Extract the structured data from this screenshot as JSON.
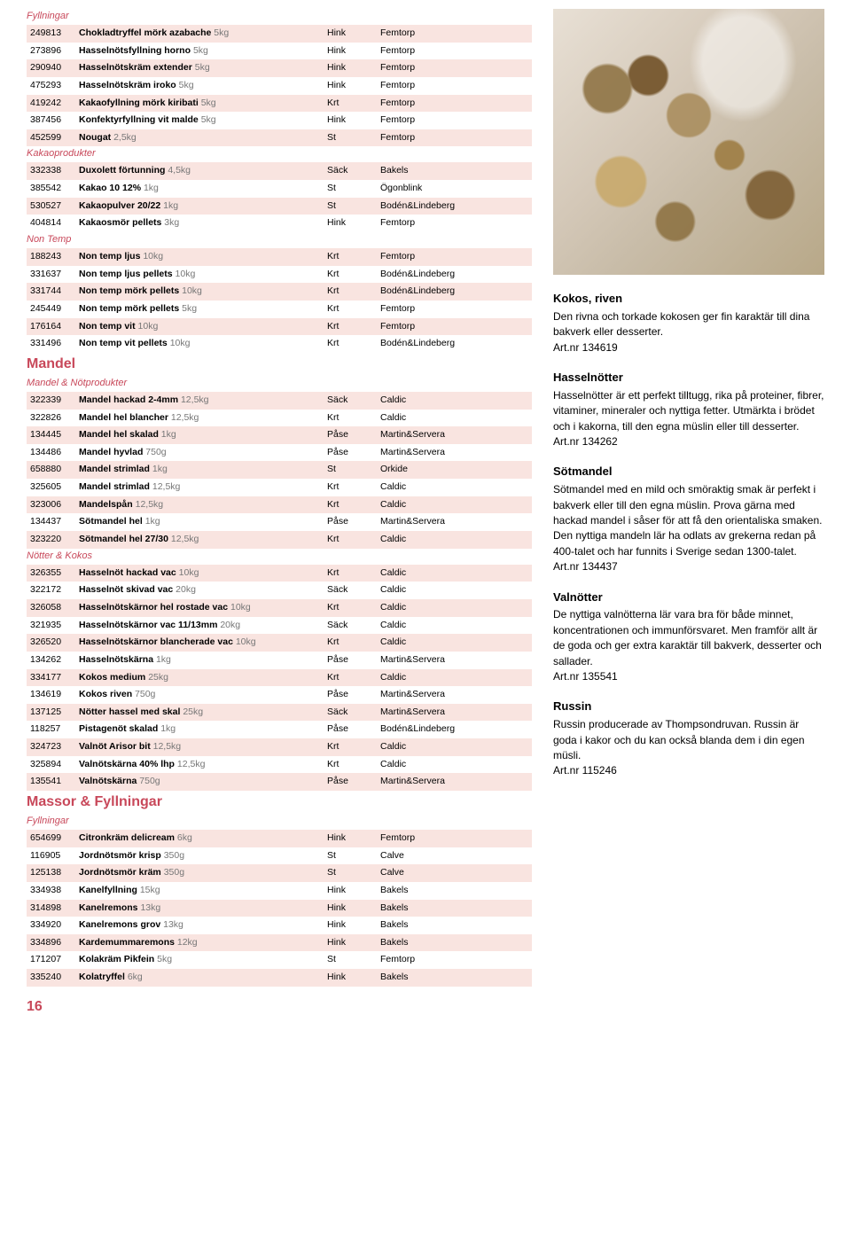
{
  "page_number": "16",
  "colors": {
    "accent": "#c8485a",
    "row_odd": "#f9e4e0",
    "row_even": "#ffffff",
    "light_text": "#777777"
  },
  "left": {
    "groups": [
      {
        "type": "subheader",
        "label": "Fyllningar"
      },
      {
        "type": "rows",
        "rows": [
          [
            "249813",
            "Chokladtryffel mörk azabache",
            "5kg",
            "Hink",
            "Femtorp"
          ],
          [
            "273896",
            "Hasselnötsfyllning horno",
            "5kg",
            "Hink",
            "Femtorp"
          ],
          [
            "290940",
            "Hasselnötskräm extender",
            "5kg",
            "Hink",
            "Femtorp"
          ],
          [
            "475293",
            "Hasselnötskräm iroko",
            "5kg",
            "Hink",
            "Femtorp"
          ],
          [
            "419242",
            "Kakaofyllning mörk kiribati",
            "5kg",
            "Krt",
            "Femtorp"
          ],
          [
            "387456",
            "Konfektyrfyllning vit malde",
            "5kg",
            "Hink",
            "Femtorp"
          ],
          [
            "452599",
            "Nougat",
            "2,5kg",
            "St",
            "Femtorp"
          ]
        ]
      },
      {
        "type": "subheader",
        "label": "Kakaoprodukter"
      },
      {
        "type": "rows",
        "rows": [
          [
            "332338",
            "Duxolett förtunning",
            "4,5kg",
            "Säck",
            "Bakels"
          ],
          [
            "385542",
            "Kakao 10 12%",
            "1kg",
            "St",
            "Ögonblink"
          ],
          [
            "530527",
            "Kakaopulver 20/22",
            "1kg",
            "St",
            "Bodén&Lindeberg"
          ],
          [
            "404814",
            "Kakaosmör pellets",
            "3kg",
            "Hink",
            "Femtorp"
          ]
        ]
      },
      {
        "type": "subheader",
        "label": "Non Temp"
      },
      {
        "type": "rows",
        "rows": [
          [
            "188243",
            "Non temp ljus",
            "10kg",
            "Krt",
            "Femtorp"
          ],
          [
            "331637",
            "Non temp ljus pellets",
            "10kg",
            "Krt",
            "Bodén&Lindeberg"
          ],
          [
            "331744",
            "Non temp mörk pellets",
            "10kg",
            "Krt",
            "Bodén&Lindeberg"
          ],
          [
            "245449",
            "Non temp mörk pellets",
            "5kg",
            "Krt",
            "Femtorp"
          ],
          [
            "176164",
            "Non temp vit",
            "10kg",
            "Krt",
            "Femtorp"
          ],
          [
            "331496",
            "Non temp vit pellets",
            "10kg",
            "Krt",
            "Bodén&Lindeberg"
          ]
        ]
      },
      {
        "type": "section",
        "label": "Mandel"
      },
      {
        "type": "subheader",
        "label": "Mandel & Nötprodukter"
      },
      {
        "type": "rows",
        "rows": [
          [
            "322339",
            "Mandel hackad 2-4mm",
            "12,5kg",
            "Säck",
            "Caldic"
          ],
          [
            "322826",
            "Mandel hel blancher",
            "12,5kg",
            "Krt",
            "Caldic"
          ],
          [
            "134445",
            "Mandel hel skalad",
            "1kg",
            "Påse",
            "Martin&Servera"
          ],
          [
            "134486",
            "Mandel hyvlad",
            "750g",
            "Påse",
            "Martin&Servera"
          ],
          [
            "658880",
            "Mandel strimlad",
            "1kg",
            "St",
            "Orkide"
          ],
          [
            "325605",
            "Mandel strimlad",
            "12,5kg",
            "Krt",
            "Caldic"
          ],
          [
            "323006",
            "Mandelspån",
            "12,5kg",
            "Krt",
            "Caldic"
          ],
          [
            "134437",
            "Sötmandel hel",
            "1kg",
            "Påse",
            "Martin&Servera"
          ],
          [
            "323220",
            "Sötmandel hel 27/30",
            "12,5kg",
            "Krt",
            "Caldic"
          ]
        ]
      },
      {
        "type": "subheader",
        "label": "Nötter & Kokos"
      },
      {
        "type": "rows",
        "rows": [
          [
            "326355",
            "Hasselnöt hackad vac",
            "10kg",
            "Krt",
            "Caldic"
          ],
          [
            "322172",
            "Hasselnöt skivad vac",
            "20kg",
            "Säck",
            "Caldic"
          ],
          [
            "326058",
            "Hasselnötskärnor hel rostade vac",
            "10kg",
            "Krt",
            "Caldic"
          ],
          [
            "321935",
            "Hasselnötskärnor vac 11/13mm",
            "20kg",
            "Säck",
            "Caldic"
          ],
          [
            "326520",
            "Hasselnötskärnor blancherade vac",
            "10kg",
            "Krt",
            "Caldic"
          ],
          [
            "134262",
            "Hasselnötskärna",
            "1kg",
            "Påse",
            "Martin&Servera"
          ],
          [
            "334177",
            "Kokos medium",
            "25kg",
            "Krt",
            "Caldic"
          ],
          [
            "134619",
            "Kokos riven",
            "750g",
            "Påse",
            "Martin&Servera"
          ],
          [
            "137125",
            "Nötter hassel med skal",
            "25kg",
            "Säck",
            "Martin&Servera"
          ],
          [
            "118257",
            "Pistagenöt skalad",
            "1kg",
            "Påse",
            "Bodén&Lindeberg"
          ],
          [
            "324723",
            "Valnöt Arisor bit",
            "12,5kg",
            "Krt",
            "Caldic"
          ],
          [
            "325894",
            "Valnötskärna 40% lhp",
            "12,5kg",
            "Krt",
            "Caldic"
          ],
          [
            "135541",
            "Valnötskärna",
            "750g",
            "Påse",
            "Martin&Servera"
          ]
        ]
      },
      {
        "type": "section",
        "label": "Massor & Fyllningar"
      },
      {
        "type": "subheader",
        "label": "Fyllningar"
      },
      {
        "type": "rows",
        "rows": [
          [
            "654699",
            "Citronkräm delicream",
            "6kg",
            "Hink",
            "Femtorp"
          ],
          [
            "116905",
            "Jordnötsmör krisp",
            "350g",
            "St",
            "Calve"
          ],
          [
            "125138",
            "Jordnötsmör kräm",
            "350g",
            "St",
            "Calve"
          ],
          [
            "334938",
            "Kanelfyllning",
            "15kg",
            "Hink",
            "Bakels"
          ],
          [
            "314898",
            "Kanelremons",
            "13kg",
            "Hink",
            "Bakels"
          ],
          [
            "334920",
            "Kanelremons grov",
            "13kg",
            "Hink",
            "Bakels"
          ],
          [
            "334896",
            "Kardemummaremons",
            "12kg",
            "Hink",
            "Bakels"
          ],
          [
            "171207",
            "Kolakräm Pikfein",
            "5kg",
            "St",
            "Femtorp"
          ],
          [
            "335240",
            "Kolatryffel",
            "6kg",
            "Hink",
            "Bakels"
          ]
        ]
      }
    ]
  },
  "right": {
    "blocks": [
      {
        "title": "Kokos, riven",
        "body": "Den rivna och torkade kokosen ger fin karaktär till dina bakverk eller desserter.",
        "artnr": "Art.nr 134619"
      },
      {
        "title": "Hasselnötter",
        "body": "Hasselnötter är ett perfekt tilltugg, rika på proteiner, fibrer, vitaminer, mineraler och nyttiga fetter. Utmärkta i brödet och i kakorna, till den egna müslin eller till desserter.",
        "artnr": "Art.nr 134262"
      },
      {
        "title": "Sötmandel",
        "body": "Sötmandel med en mild och smöraktig smak är perfekt i bakverk eller till den egna müslin. Prova gärna med hackad mandel i såser för att få den orientaliska smaken. Den nyttiga mandeln lär ha odlats av grekerna redan på 400-talet och har funnits i Sverige sedan 1300-talet.",
        "artnr": "Art.nr 134437"
      },
      {
        "title": "Valnötter",
        "body": "De nyttiga valnötterna lär vara bra för både minnet, koncentrationen och immunförsvaret. Men framför allt är de goda och ger extra karaktär till bakverk, desserter och sallader.",
        "artnr": "Art.nr 135541"
      },
      {
        "title": "Russin",
        "body": "Russin producerade av Thompsondruvan. Russin är goda i kakor och du kan också blanda dem i din egen müsli.",
        "artnr": "Art.nr 115246"
      }
    ]
  }
}
